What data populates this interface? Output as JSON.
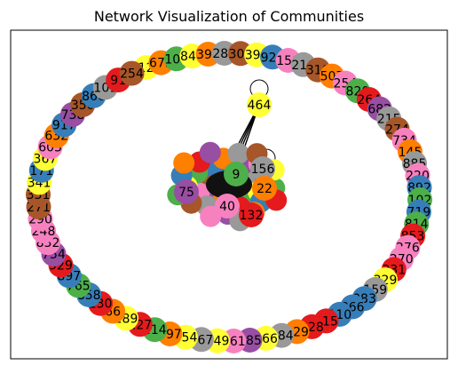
{
  "title": "Network Visualization of Communities",
  "colors": {
    "blue": "#377eb8",
    "orange": "#ff7f00",
    "green": "#4daf4a",
    "pink": "#f781bf",
    "brown": "#a65628",
    "purple": "#984ea3",
    "gray": "#999999",
    "red": "#e41a1c",
    "yellow": "#ffff33"
  },
  "outer_nodes": [
    {
      "label": "12",
      "color": "yellow"
    },
    {
      "label": "675",
      "color": "orange"
    },
    {
      "label": "104",
      "color": "green"
    },
    {
      "label": "840",
      "color": "yellow"
    },
    {
      "label": "393",
      "color": "orange"
    },
    {
      "label": "283",
      "color": "gray"
    },
    {
      "label": "309",
      "color": "brown"
    },
    {
      "label": "391",
      "color": "yellow"
    },
    {
      "label": "920",
      "color": "blue"
    },
    {
      "label": "150",
      "color": "pink"
    },
    {
      "label": "216",
      "color": "gray"
    },
    {
      "label": "310",
      "color": "brown"
    },
    {
      "label": "507",
      "color": "orange"
    },
    {
      "label": "254",
      "color": "pink"
    },
    {
      "label": "820",
      "color": "green"
    },
    {
      "label": "264",
      "color": "red"
    },
    {
      "label": "682",
      "color": "purple"
    },
    {
      "label": "215",
      "color": "gray"
    },
    {
      "label": "274",
      "color": "brown"
    },
    {
      "label": "734",
      "color": "pink"
    },
    {
      "label": "145",
      "color": "orange"
    },
    {
      "label": "885",
      "color": "gray"
    },
    {
      "label": "220",
      "color": "pink"
    },
    {
      "label": "892",
      "color": "blue"
    },
    {
      "label": "102",
      "color": "green"
    },
    {
      "label": "719",
      "color": "blue"
    },
    {
      "label": "814",
      "color": "green"
    },
    {
      "label": "853",
      "color": "red"
    },
    {
      "label": "276",
      "color": "pink"
    },
    {
      "label": "270",
      "color": "pink"
    },
    {
      "label": "331",
      "color": "red"
    },
    {
      "label": "329",
      "color": "yellow"
    },
    {
      "label": "159",
      "color": "gray"
    },
    {
      "label": "883",
      "color": "blue"
    },
    {
      "label": "866",
      "color": "blue"
    },
    {
      "label": "110",
      "color": "blue"
    },
    {
      "label": "115",
      "color": "red"
    },
    {
      "label": "328",
      "color": "red"
    },
    {
      "label": "229",
      "color": "orange"
    },
    {
      "label": "184",
      "color": "gray"
    },
    {
      "label": "566",
      "color": "yellow"
    },
    {
      "label": "185",
      "color": "purple"
    },
    {
      "label": "261",
      "color": "pink"
    },
    {
      "label": "449",
      "color": "yellow"
    },
    {
      "label": "167",
      "color": "gray"
    },
    {
      "label": "454",
      "color": "yellow"
    },
    {
      "label": "497",
      "color": "orange"
    },
    {
      "label": "214",
      "color": "green"
    },
    {
      "label": "127",
      "color": "red"
    },
    {
      "label": "189",
      "color": "yellow"
    },
    {
      "label": "66",
      "color": "orange"
    },
    {
      "label": "130",
      "color": "red"
    },
    {
      "label": "858",
      "color": "blue"
    },
    {
      "label": "765",
      "color": "green"
    },
    {
      "label": "897",
      "color": "blue"
    },
    {
      "label": "929",
      "color": "red"
    },
    {
      "label": "754",
      "color": "purple"
    },
    {
      "label": "832",
      "color": "pink"
    },
    {
      "label": "248",
      "color": "pink"
    },
    {
      "label": "290",
      "color": "pink"
    },
    {
      "label": "271",
      "color": "brown"
    },
    {
      "label": "331",
      "color": "brown"
    },
    {
      "label": "341",
      "color": "yellow"
    },
    {
      "label": "171",
      "color": "blue"
    },
    {
      "label": "367",
      "color": "yellow"
    },
    {
      "label": "603",
      "color": "pink"
    },
    {
      "label": "632",
      "color": "orange"
    },
    {
      "label": "917",
      "color": "blue"
    },
    {
      "label": "738",
      "color": "purple"
    },
    {
      "label": "350",
      "color": "brown"
    },
    {
      "label": "866",
      "color": "blue"
    },
    {
      "label": "101",
      "color": "gray"
    },
    {
      "label": "91",
      "color": "red"
    },
    {
      "label": "254",
      "color": "brown"
    }
  ],
  "center_nodes": [
    {
      "label": "464",
      "color": "yellow",
      "self_loop": true
    },
    {
      "label": "156",
      "color": "gray",
      "self_loop": true
    },
    {
      "label": "22",
      "color": "orange",
      "self_loop": false
    },
    {
      "label": "132",
      "color": "red",
      "self_loop": false
    },
    {
      "label": "75",
      "color": "purple",
      "self_loop": false
    },
    {
      "label": "40",
      "color": "pink",
      "self_loop": false
    },
    {
      "label": "9",
      "color": "green",
      "self_loop": false
    }
  ]
}
